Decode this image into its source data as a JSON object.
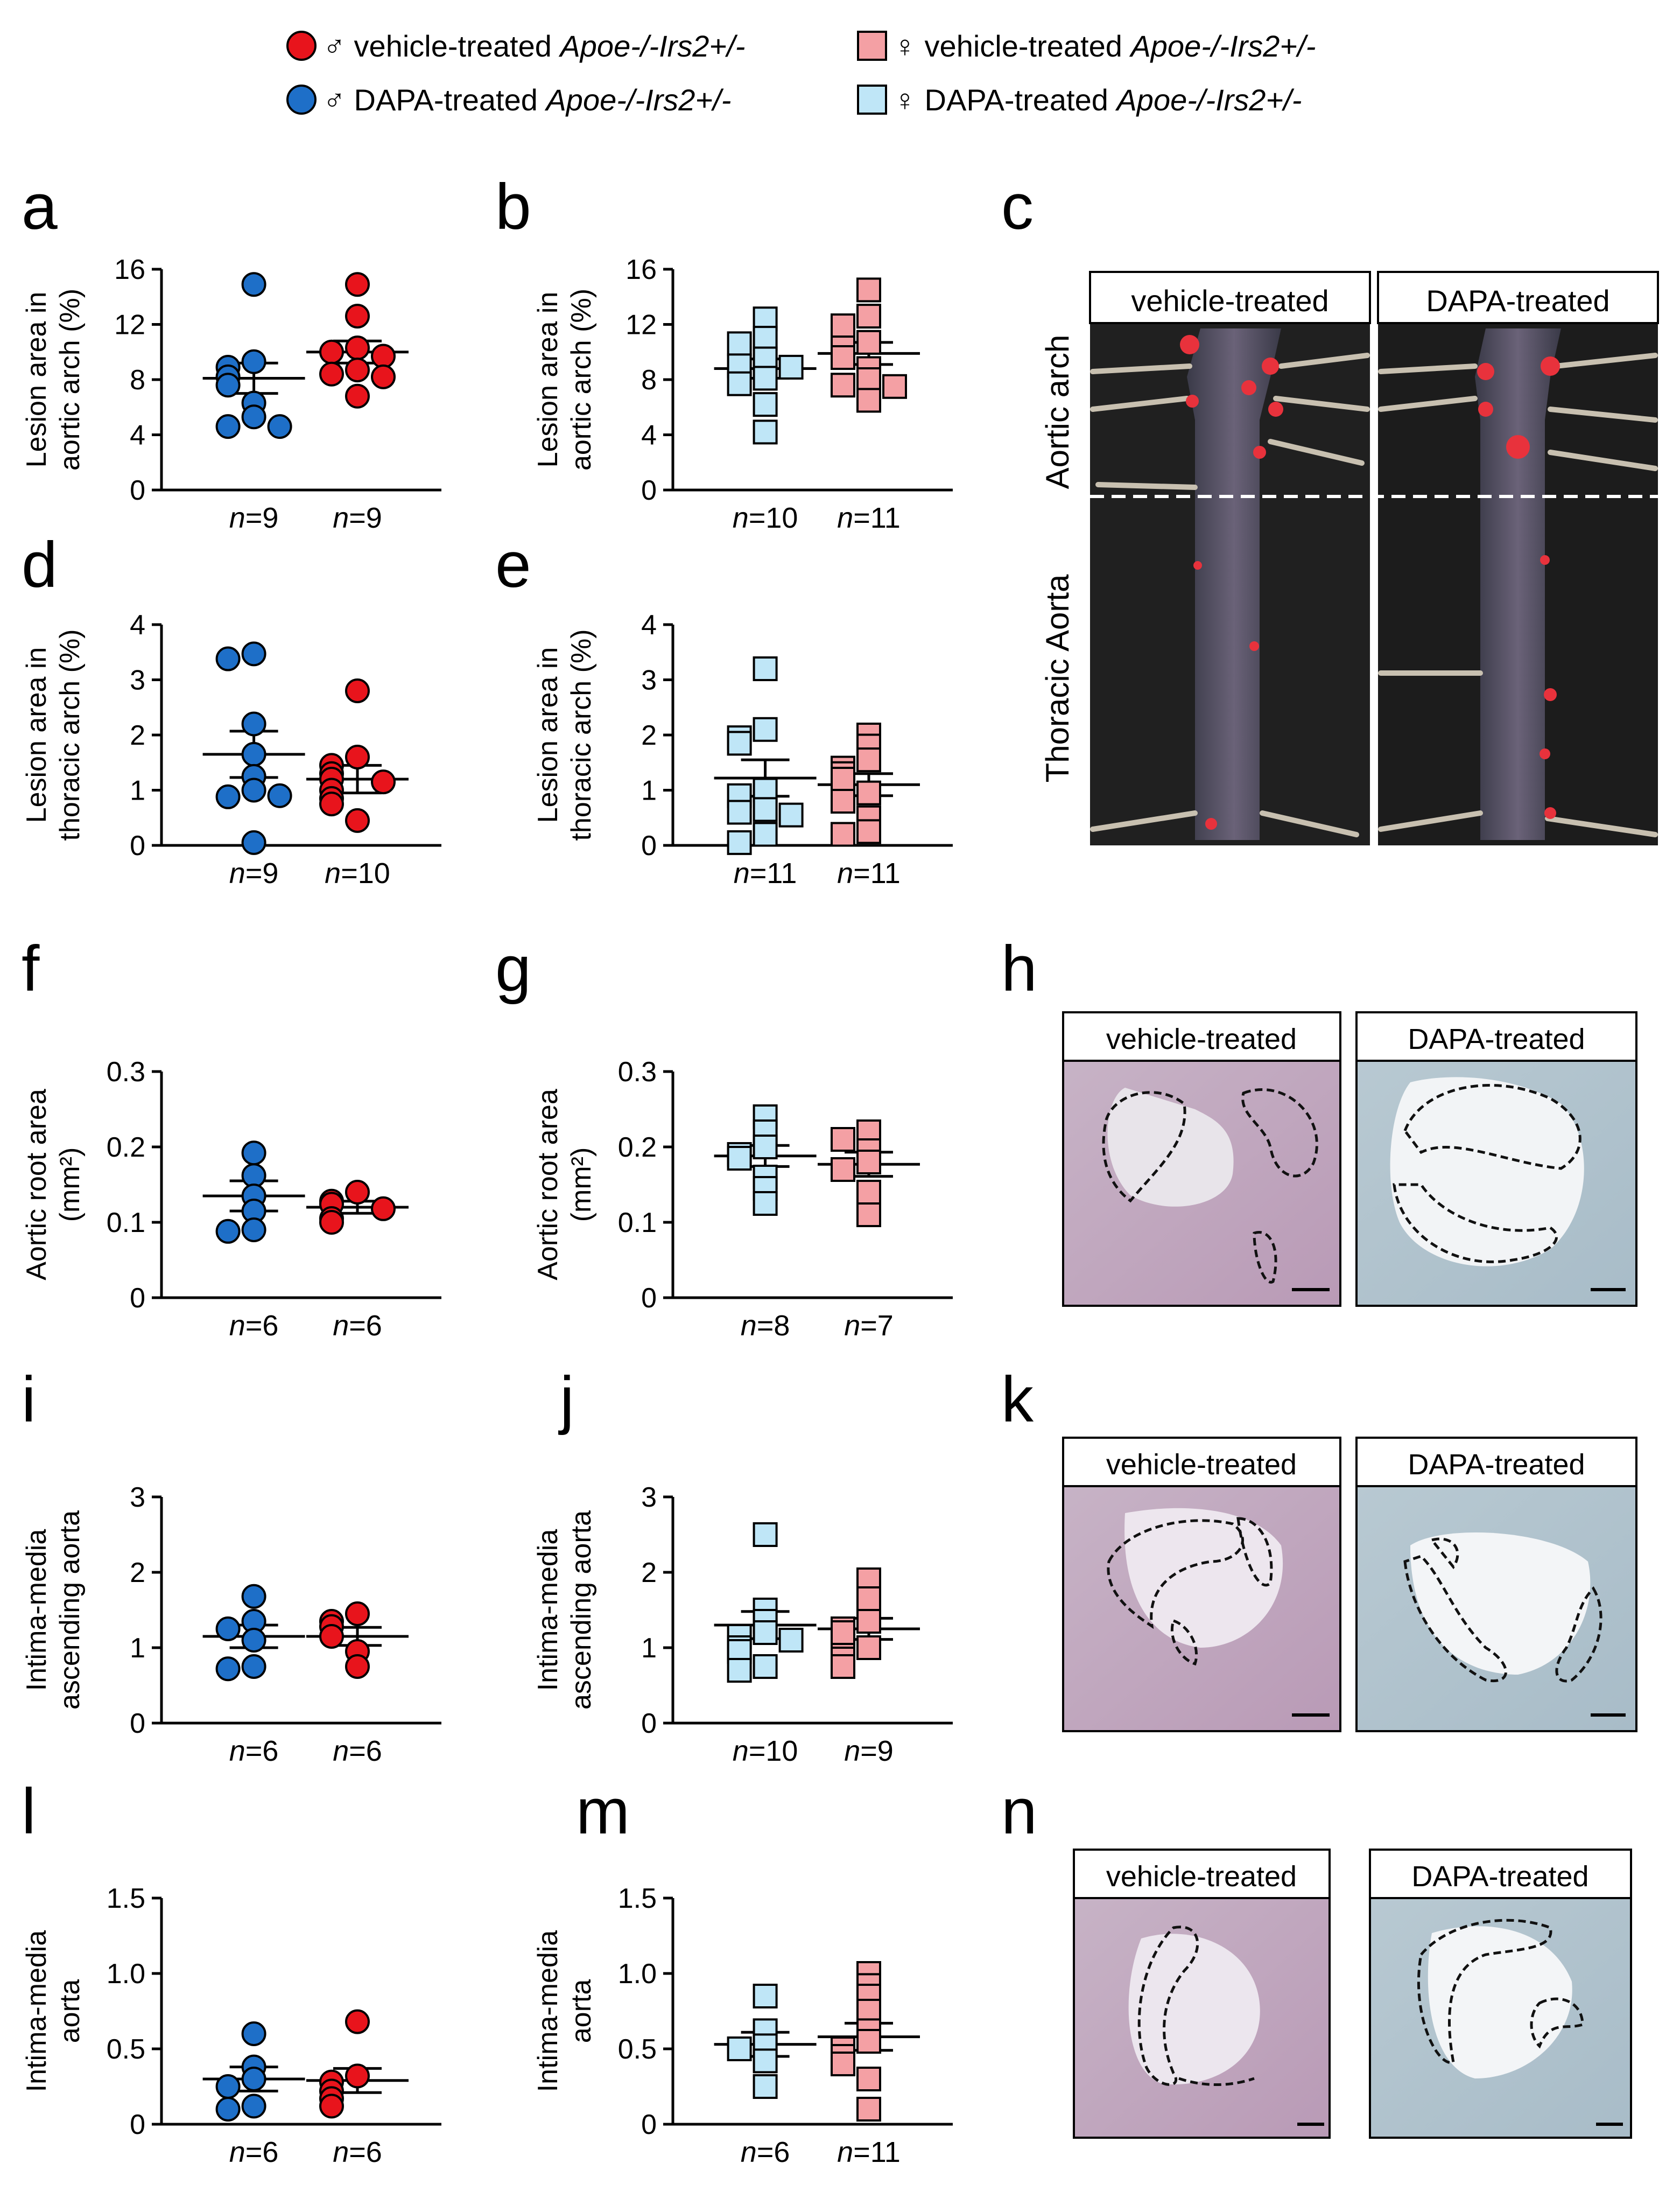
{
  "legend": [
    {
      "symbol": "circle",
      "sex": "♂",
      "treatment": "vehicle-treated",
      "genotype": "Apoe-/-Irs2+/-",
      "color": "#e8141c",
      "stroke": "#000000"
    },
    {
      "symbol": "square",
      "sex": "♀",
      "treatment": "vehicle-treated",
      "genotype": "Apoe-/-Irs2+/-",
      "color": "#f4a0a4",
      "stroke": "#000000"
    },
    {
      "symbol": "circle",
      "sex": "♂",
      "treatment": "DAPA-treated",
      "genotype": "Apoe-/-Irs2+/-",
      "color": "#1e6fc8",
      "stroke": "#000000"
    },
    {
      "symbol": "square",
      "sex": "♀",
      "treatment": "DAPA-treated",
      "genotype": "Apoe-/-Irs2+/-",
      "color": "#bfe6f7",
      "stroke": "#000000"
    }
  ],
  "chart_data": [
    {
      "panel": "a",
      "type": "scatter",
      "ylabel": [
        "Lesion area in",
        "aortic arch (%)"
      ],
      "ylim": [
        0,
        16
      ],
      "yticks": [
        0,
        4,
        8,
        12,
        16
      ],
      "marker": "circle",
      "groups": [
        {
          "label": "n=9",
          "color": "#1e6fc8",
          "mean": 8.1,
          "sem": 1.1,
          "values": [
            14.9,
            9.3,
            8.9,
            8.2,
            7.6,
            6.3,
            5.3,
            4.6,
            4.6
          ]
        },
        {
          "label": "n=9",
          "color": "#e8141c",
          "mean": 10.0,
          "sem": 0.8,
          "values": [
            14.9,
            12.6,
            10.3,
            10.0,
            9.7,
            8.7,
            8.4,
            8.2,
            6.8
          ]
        }
      ]
    },
    {
      "panel": "b",
      "type": "scatter",
      "ylabel": [
        "Lesion area in",
        "aortic arch (%)"
      ],
      "ylim": [
        0,
        16
      ],
      "yticks": [
        0,
        4,
        8,
        12,
        16
      ],
      "marker": "square",
      "groups": [
        {
          "label": "n=10",
          "color": "#bfe6f7",
          "mean": 8.8,
          "sem": 0.7,
          "values": [
            12.4,
            11.0,
            10.6,
            9.5,
            9.0,
            8.9,
            8.1,
            7.7,
            6.2,
            4.2
          ]
        },
        {
          "label": "n=11",
          "color": "#f4a0a4",
          "mean": 9.9,
          "sem": 0.8,
          "values": [
            14.5,
            12.6,
            11.9,
            10.7,
            10.3,
            9.6,
            8.8,
            8.0,
            7.6,
            7.5,
            6.5
          ]
        }
      ]
    },
    {
      "panel": "d",
      "type": "scatter",
      "ylabel": [
        "Lesion area in",
        "thoracic arch (%)"
      ],
      "ylim": [
        0,
        4
      ],
      "yticks": [
        0,
        1,
        2,
        3,
        4
      ],
      "marker": "circle",
      "groups": [
        {
          "label": "n=9",
          "color": "#1e6fc8",
          "mean": 1.65,
          "sem": 0.42,
          "values": [
            3.47,
            3.38,
            2.2,
            1.65,
            1.25,
            1.0,
            0.88,
            0.9,
            0.05
          ]
        },
        {
          "label": "n=10",
          "color": "#e8141c",
          "mean": 1.2,
          "sem": 0.25,
          "values": [
            2.8,
            1.6,
            1.45,
            1.3,
            1.2,
            1.15,
            1.0,
            0.85,
            0.75,
            0.45
          ]
        }
      ]
    },
    {
      "panel": "e",
      "type": "scatter",
      "ylabel": [
        "Lesion area in",
        "thoracic arch (%)"
      ],
      "ylim": [
        0,
        4
      ],
      "yticks": [
        0,
        1,
        2,
        3,
        4
      ],
      "marker": "square",
      "groups": [
        {
          "label": "n=11",
          "color": "#bfe6f7",
          "mean": 1.22,
          "sem": 0.33,
          "values": [
            3.2,
            2.1,
            1.95,
            1.85,
            1.0,
            0.9,
            0.65,
            0.6,
            0.55,
            0.2,
            0.05
          ]
        },
        {
          "label": "n=11",
          "color": "#f4a0a4",
          "mean": 1.1,
          "sem": 0.2,
          "values": [
            2.0,
            1.8,
            1.55,
            1.4,
            1.3,
            1.2,
            0.95,
            0.8,
            0.5,
            0.25,
            0.2
          ]
        }
      ]
    },
    {
      "panel": "f",
      "type": "scatter",
      "ylabel": [
        "Aortic root area",
        "(mm²)"
      ],
      "ylim": [
        0,
        0.3
      ],
      "yticks": [
        "0",
        "0.1",
        "0.2",
        "0.3"
      ],
      "ytickvals": [
        0,
        0.1,
        0.2,
        0.3
      ],
      "marker": "circle",
      "groups": [
        {
          "label": "n=6",
          "color": "#1e6fc8",
          "mean": 0.135,
          "sem": 0.02,
          "values": [
            0.192,
            0.162,
            0.135,
            0.115,
            0.09,
            0.088
          ]
        },
        {
          "label": "n=6",
          "color": "#e8141c",
          "mean": 0.12,
          "sem": 0.008,
          "values": [
            0.14,
            0.128,
            0.124,
            0.118,
            0.105,
            0.1
          ]
        }
      ]
    },
    {
      "panel": "g",
      "type": "scatter",
      "ylabel": [
        "Aortic root area",
        "(mm²)"
      ],
      "ylim": [
        0,
        0.3
      ],
      "yticks": [
        "0",
        "0.1",
        "0.2",
        "0.3"
      ],
      "ytickvals": [
        0,
        0.1,
        0.2,
        0.3
      ],
      "marker": "square",
      "groups": [
        {
          "label": "n=8",
          "color": "#bfe6f7",
          "mean": 0.188,
          "sem": 0.014,
          "values": [
            0.24,
            0.22,
            0.2,
            0.19,
            0.185,
            0.16,
            0.145,
            0.125
          ]
        },
        {
          "label": "n=7",
          "color": "#f4a0a4",
          "mean": 0.177,
          "sem": 0.016,
          "values": [
            0.22,
            0.21,
            0.195,
            0.18,
            0.17,
            0.14,
            0.11
          ]
        }
      ]
    },
    {
      "panel": "i",
      "type": "scatter",
      "ylabel": [
        "Intima-media",
        "ascending aorta"
      ],
      "ylim": [
        0,
        3
      ],
      "yticks": [
        0,
        1,
        2,
        3
      ],
      "marker": "circle",
      "groups": [
        {
          "label": "n=6",
          "color": "#1e6fc8",
          "mean": 1.15,
          "sem": 0.15,
          "values": [
            1.68,
            1.35,
            1.25,
            1.1,
            0.75,
            0.72
          ]
        },
        {
          "label": "n=6",
          "color": "#e8141c",
          "mean": 1.15,
          "sem": 0.12,
          "values": [
            1.45,
            1.35,
            1.28,
            1.15,
            0.95,
            0.75
          ]
        }
      ]
    },
    {
      "panel": "j",
      "type": "scatter",
      "ylabel": [
        "Intima-media",
        "ascending aorta"
      ],
      "ylim": [
        0,
        3
      ],
      "yticks": [
        0,
        1,
        2,
        3
      ],
      "marker": "square",
      "groups": [
        {
          "label": "n=10",
          "color": "#bfe6f7",
          "mean": 1.3,
          "sem": 0.18,
          "values": [
            2.5,
            1.5,
            1.35,
            1.2,
            1.15,
            1.1,
            1.0,
            0.95,
            0.75,
            0.7
          ]
        },
        {
          "label": "n=9",
          "color": "#f4a0a4",
          "mean": 1.25,
          "sem": 0.14,
          "values": [
            1.9,
            1.65,
            1.35,
            1.25,
            1.2,
            1.0,
            0.9,
            0.85,
            0.75
          ]
        }
      ]
    },
    {
      "panel": "l",
      "type": "scatter",
      "ylabel": [
        "Intima-media",
        "aorta"
      ],
      "ylim": [
        0,
        1.5
      ],
      "yticks": [
        "0",
        "0.5",
        "1.0",
        "1.5"
      ],
      "ytickvals": [
        0,
        0.5,
        1.0,
        1.5
      ],
      "marker": "circle",
      "groups": [
        {
          "label": "n=6",
          "color": "#1e6fc8",
          "mean": 0.3,
          "sem": 0.08,
          "values": [
            0.6,
            0.38,
            0.3,
            0.25,
            0.12,
            0.1
          ]
        },
        {
          "label": "n=6",
          "color": "#e8141c",
          "mean": 0.29,
          "sem": 0.08,
          "values": [
            0.68,
            0.32,
            0.28,
            0.22,
            0.17,
            0.12
          ]
        }
      ]
    },
    {
      "panel": "m",
      "type": "scatter",
      "ylabel": [
        "Intima-media",
        "aorta"
      ],
      "ylim": [
        0,
        1.5
      ],
      "yticks": [
        "0",
        "0.5",
        "1.0",
        "1.5"
      ],
      "ytickvals": [
        0,
        0.5,
        1.0,
        1.5
      ],
      "marker": "square",
      "groups": [
        {
          "label": "n=6",
          "color": "#bfe6f7",
          "mean": 0.53,
          "sem": 0.08,
          "values": [
            0.85,
            0.62,
            0.52,
            0.5,
            0.42,
            0.25
          ]
        },
        {
          "label": "n=11",
          "color": "#f4a0a4",
          "mean": 0.58,
          "sem": 0.09,
          "values": [
            1.0,
            0.92,
            0.85,
            0.75,
            0.62,
            0.55,
            0.5,
            0.45,
            0.4,
            0.3,
            0.1
          ]
        }
      ]
    }
  ],
  "photo_panels": [
    {
      "panel": "c",
      "tags": [
        "vehicle-treated",
        "DAPA-treated"
      ],
      "side_labels": [
        "Aortic arch",
        "Thoracic Aorta"
      ]
    },
    {
      "panel": "h",
      "tags": [
        "vehicle-treated",
        "DAPA-treated"
      ]
    },
    {
      "panel": "k",
      "tags": [
        "vehicle-treated",
        "DAPA-treated"
      ]
    },
    {
      "panel": "n",
      "tags": [
        "vehicle-treated",
        "DAPA-treated"
      ]
    }
  ]
}
